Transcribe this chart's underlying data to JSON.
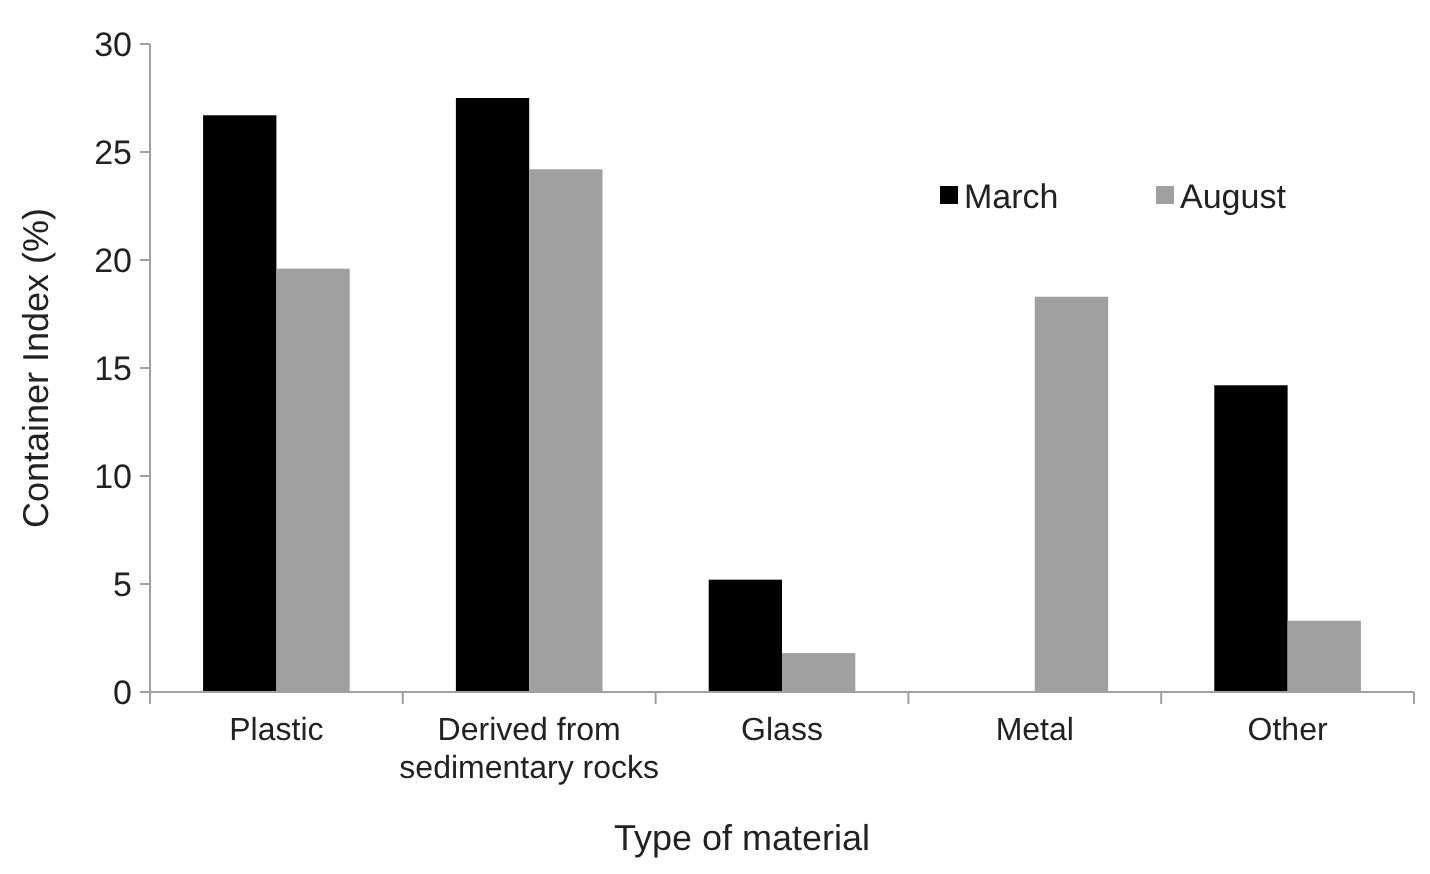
{
  "chart_data": {
    "type": "bar",
    "xlabel": "Type of material",
    "ylabel": "Container Index (%)",
    "categories": [
      "Plastic",
      "Derived from sedimentary rocks",
      "Glass",
      "Metal",
      "Other"
    ],
    "series": [
      {
        "name": "March",
        "color": "#000000",
        "values": [
          26.7,
          27.5,
          5.2,
          0,
          14.2
        ]
      },
      {
        "name": "August",
        "color": "#a0a0a0",
        "values": [
          19.6,
          24.2,
          1.8,
          18.3,
          3.3
        ]
      }
    ],
    "ylim": [
      0,
      30
    ],
    "yticks": [
      0,
      5,
      10,
      15,
      20,
      25,
      30
    ],
    "grid": false,
    "legend": "top right"
  }
}
